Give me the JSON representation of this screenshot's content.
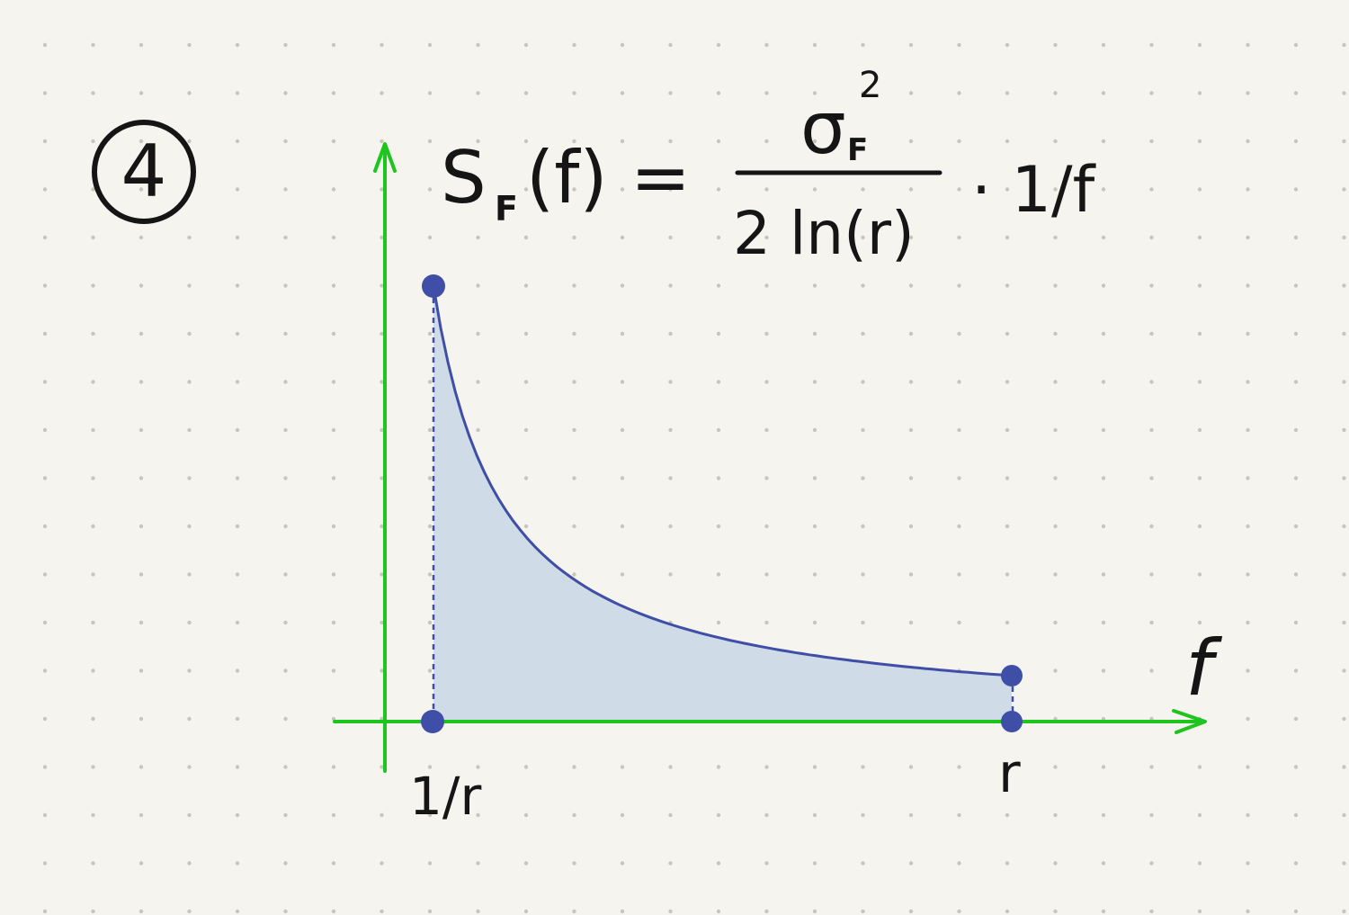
{
  "badge": {
    "number": "4"
  },
  "formula": {
    "lhs": "S",
    "lhs_sub": "F",
    "lhs_arg": "(f) =",
    "numerator": "σ",
    "numerator_sub": "F",
    "numerator_sup": "2",
    "denominator": "2 ln(r)",
    "factor": "· 1/f"
  },
  "axes": {
    "x_label": "f",
    "tick_left": "1/r",
    "tick_right": "r"
  },
  "colors": {
    "paper": "#f6f4ee",
    "dot_grid": "#c9c5bd",
    "axis": "#1ec51e",
    "curve": "#3f4ea6",
    "fill": "#cfdbe7",
    "ink": "#151515"
  },
  "chart_data": {
    "type": "area",
    "function": "1/f",
    "domain_labels": [
      "1/r",
      "r"
    ]
  }
}
